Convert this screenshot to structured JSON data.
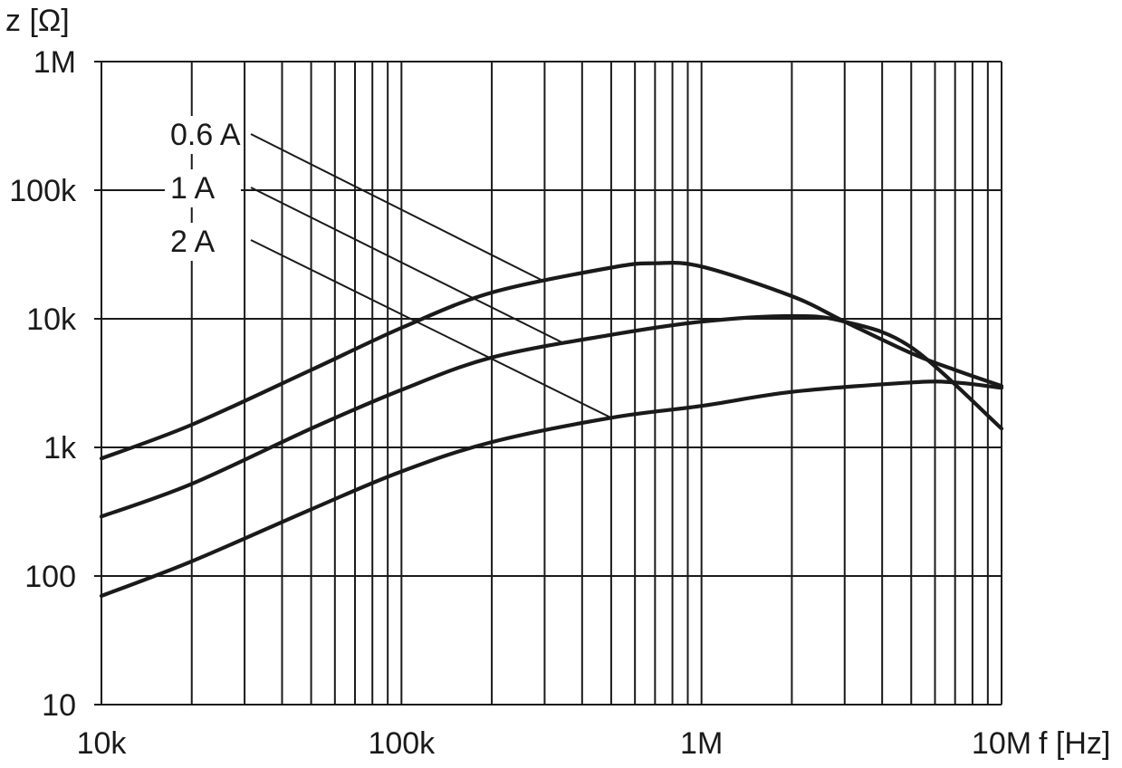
{
  "chart_data": {
    "type": "line",
    "xlabel": "f [Hz]",
    "ylabel": "z [Ω]",
    "x_scale": "log",
    "y_scale": "log",
    "xlim": [
      10000,
      10000000
    ],
    "ylim": [
      10,
      1000000
    ],
    "grid": true,
    "x_ticks": [
      {
        "value": 10000,
        "label": "10k"
      },
      {
        "value": 100000,
        "label": "100k"
      },
      {
        "value": 1000000,
        "label": "1M"
      },
      {
        "value": 10000000,
        "label": "10M"
      }
    ],
    "y_ticks": [
      {
        "value": 10,
        "label": "10"
      },
      {
        "value": 100,
        "label": "100"
      },
      {
        "value": 1000,
        "label": "1k"
      },
      {
        "value": 10000,
        "label": "10k"
      },
      {
        "value": 100000,
        "label": "100k"
      },
      {
        "value": 1000000,
        "label": "1M"
      }
    ],
    "series": [
      {
        "name": "0.6 A",
        "x": [
          10000,
          20000,
          50000,
          100000,
          200000,
          500000,
          700000,
          1000000,
          2000000,
          3000000,
          5000000,
          7000000,
          10000000
        ],
        "y": [
          820,
          1500,
          4000,
          8500,
          16000,
          25000,
          27000,
          25500,
          15000,
          9500,
          5400,
          4000,
          3000
        ]
      },
      {
        "name": "1 A",
        "x": [
          10000,
          20000,
          50000,
          100000,
          200000,
          500000,
          1000000,
          2000000,
          3000000,
          5000000,
          10000000
        ],
        "y": [
          290,
          520,
          1400,
          2800,
          5000,
          7500,
          9500,
          10500,
          9500,
          6000,
          1400
        ]
      },
      {
        "name": "2 A",
        "x": [
          10000,
          20000,
          50000,
          100000,
          200000,
          500000,
          1000000,
          2000000,
          5000000,
          7000000,
          10000000
        ],
        "y": [
          70,
          130,
          330,
          650,
          1100,
          1700,
          2100,
          2700,
          3200,
          3200,
          2900
        ]
      }
    ]
  }
}
